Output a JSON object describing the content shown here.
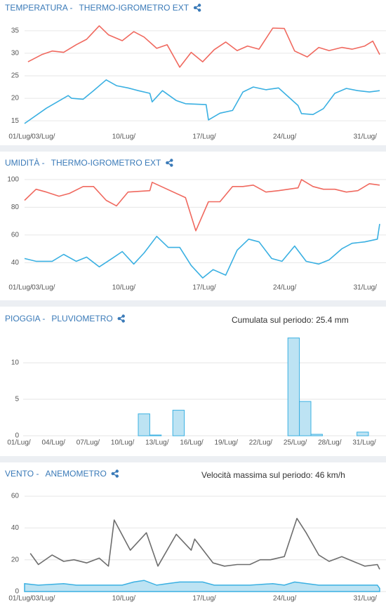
{
  "chart_data": [
    {
      "type": "line",
      "title": "TEMPERATURA -",
      "sensor": "THERMO-IGROMETRO EXT",
      "xlim": [
        1,
        31.9
      ],
      "xticks": [
        {
          "value": 1,
          "label": "01/Lug/"
        },
        {
          "value": 3,
          "label": "03/Lug/"
        },
        {
          "value": 10,
          "label": "10/Lug/"
        },
        {
          "value": 17,
          "label": "17/Lug/"
        },
        {
          "value": 24,
          "label": "24/Lug/"
        },
        {
          "value": 31,
          "label": "31/Lug/"
        }
      ],
      "ylim": [
        13,
        37
      ],
      "yticks": [
        15,
        20,
        25,
        30,
        35
      ],
      "grid": true,
      "series": [
        {
          "color": "#f0695f",
          "x": [
            1.3,
            2.5,
            3.4,
            4.4,
            5.5,
            6.4,
            7.5,
            8.3,
            9.5,
            10.5,
            11.4,
            12.5,
            13.4,
            14.5,
            15.5,
            16.5,
            17.5,
            18.5,
            19.5,
            20.4,
            21.4,
            22.6,
            23.6,
            24.5,
            25.6,
            26.6,
            27.5,
            28.6,
            29.5,
            30.6,
            31.3,
            31.9
          ],
          "values": [
            28.1,
            29.7,
            30.5,
            30.2,
            31.9,
            33.1,
            36.1,
            34.1,
            32.8,
            34.8,
            33.6,
            31.1,
            31.9,
            26.9,
            30.2,
            28.1,
            30.8,
            32.5,
            30.6,
            31.6,
            30.9,
            35.6,
            35.5,
            30.5,
            29.2,
            31.3,
            30.6,
            31.3,
            30.9,
            31.6,
            32.7,
            29.7
          ]
        },
        {
          "color": "#3ab0e2",
          "x": [
            1,
            2.9,
            4.8,
            5.1,
            6.1,
            7,
            8.1,
            9,
            10,
            10.9,
            11.9,
            12.1,
            13,
            14.2,
            15,
            16.8,
            17,
            18,
            19.1,
            20,
            20.9,
            22,
            23.1,
            24.8,
            25.1,
            26.1,
            27,
            28,
            29,
            30,
            31,
            31.9
          ],
          "values": [
            14.4,
            17.8,
            20.6,
            20,
            19.8,
            21.7,
            24.1,
            22.8,
            22.3,
            21.7,
            21.1,
            19.2,
            21.7,
            19.5,
            18.8,
            18.6,
            15.2,
            16.7,
            17.3,
            21.4,
            22.5,
            21.9,
            22.3,
            18.4,
            16.6,
            16.4,
            17.7,
            21.1,
            22.2,
            21.7,
            21.4,
            21.7
          ]
        }
      ]
    },
    {
      "type": "line",
      "title": "UMIDITÀ -",
      "sensor": "THERMO-IGROMETRO EXT",
      "xlim": [
        1,
        31.9
      ],
      "xticks": [
        {
          "value": 1,
          "label": "01/Lug/"
        },
        {
          "value": 3,
          "label": "03/Lug/"
        },
        {
          "value": 10,
          "label": "10/Lug/"
        },
        {
          "value": 17,
          "label": "17/Lug/"
        },
        {
          "value": 24,
          "label": "24/Lug/"
        },
        {
          "value": 31,
          "label": "31/Lug/"
        }
      ],
      "ylim": [
        27,
        104
      ],
      "yticks": [
        40,
        60,
        80,
        100
      ],
      "grid": true,
      "series": [
        {
          "color": "#f0695f",
          "x": [
            1,
            2,
            2.9,
            4,
            4.9,
            6.1,
            7,
            8.1,
            9,
            10,
            11.9,
            12.1,
            15,
            15.9,
            17,
            18,
            19.1,
            20,
            20.9,
            22,
            23.1,
            24.8,
            25.1,
            26.1,
            27,
            28,
            29,
            30,
            31,
            31.9
          ],
          "values": [
            85,
            93,
            91,
            88,
            90,
            95,
            95,
            85,
            81,
            91,
            92,
            98,
            87,
            63,
            84,
            84,
            95,
            95,
            96,
            91,
            92,
            94,
            100,
            95,
            93,
            93,
            91,
            92,
            97,
            96
          ]
        },
        {
          "color": "#3ab0e2",
          "x": [
            1,
            2,
            2.9,
            3.4,
            4.4,
            5.5,
            6.4,
            7.5,
            8.6,
            9.5,
            10.5,
            11.4,
            12.5,
            13.5,
            14.5,
            15.5,
            16.5,
            17.4,
            18.5,
            19.5,
            20.5,
            21.4,
            22.5,
            23.4,
            24.5,
            25.5,
            26.6,
            27.5,
            28.6,
            29.5,
            30.6,
            31.7,
            31.9
          ],
          "values": [
            43,
            41,
            41,
            41,
            46,
            41,
            44,
            37,
            43,
            48,
            39,
            47,
            59,
            51,
            51,
            38,
            29,
            35,
            31,
            49,
            57,
            55,
            43,
            41,
            52,
            41,
            39,
            42,
            50,
            54,
            55,
            57,
            68
          ]
        }
      ]
    },
    {
      "type": "bar",
      "title": "PIOGGIA -",
      "sensor": "PLUVIOMETRO",
      "annotation": "Cumulata sul periodo: 25.4 mm",
      "xlim": [
        1,
        32
      ],
      "xticks": [
        {
          "value": 1,
          "label": "01/Lug/"
        },
        {
          "value": 4,
          "label": "04/Lug/"
        },
        {
          "value": 7,
          "label": "07/Lug/"
        },
        {
          "value": 10,
          "label": "10/Lug/"
        },
        {
          "value": 13,
          "label": "13/Lug/"
        },
        {
          "value": 16,
          "label": "16/Lug/"
        },
        {
          "value": 19,
          "label": "19/Lug/"
        },
        {
          "value": 22,
          "label": "22/Lug/"
        },
        {
          "value": 25,
          "label": "25/Lug/"
        },
        {
          "value": 28,
          "label": "28/Lug/"
        },
        {
          "value": 31,
          "label": "31/Lug/"
        }
      ],
      "ylim": [
        0,
        15
      ],
      "yticks": [
        0,
        5,
        10
      ],
      "grid": true,
      "color": "#bde3f3",
      "edge_color": "#3ab0e2",
      "x": [
        1,
        2,
        3,
        4,
        5,
        6,
        7,
        8,
        9,
        10,
        11,
        12,
        13,
        14,
        15,
        16,
        17,
        18,
        19,
        20,
        21,
        22,
        23,
        24,
        25,
        26,
        27,
        28,
        29,
        30,
        31
      ],
      "values": [
        0,
        0,
        0,
        0,
        0,
        0,
        0,
        0,
        0,
        0,
        3,
        0.1,
        0,
        3.5,
        0,
        0,
        0,
        0,
        0,
        0,
        0,
        0,
        0,
        13.4,
        4.7,
        0.2,
        0,
        0,
        0,
        0.5,
        0
      ]
    },
    {
      "type": "line",
      "title": "VENTO -",
      "sensor": "ANEMOMETRO",
      "annotation": "Velocità massima sul periodo: 46 km/h",
      "xlim": [
        1,
        31.9
      ],
      "xticks": [
        {
          "value": 1,
          "label": "01/Lug/"
        },
        {
          "value": 3,
          "label": "03/Lug/"
        },
        {
          "value": 10,
          "label": "10/Lug/"
        },
        {
          "value": 17,
          "label": "17/Lug/"
        },
        {
          "value": 24,
          "label": "24/Lug/"
        },
        {
          "value": 31,
          "label": "31/Lug/"
        }
      ],
      "ylim": [
        0,
        64
      ],
      "yticks": [
        0,
        20,
        40,
        60
      ],
      "grid": true,
      "series": [
        {
          "color": "#6d6d6d",
          "x": [
            1.5,
            2.2,
            3.4,
            4.4,
            5.3,
            6.4,
            7.5,
            8.3,
            8.8,
            10.2,
            11.6,
            12.6,
            14.2,
            15.5,
            15.8,
            17.4,
            18.4,
            19.5,
            20.6,
            21.5,
            22.4,
            23.6,
            24.7,
            25.5,
            26.6,
            27.5,
            28.6,
            30.6,
            31.7,
            31.9
          ],
          "values": [
            24,
            17,
            23,
            19,
            20,
            18,
            21,
            16,
            45,
            26,
            37,
            16,
            36,
            26,
            33,
            18,
            16,
            17,
            17,
            20,
            20,
            22,
            46,
            37,
            23,
            19,
            22,
            16,
            17,
            14
          ]
        },
        {
          "color": "#3ab0e2",
          "fill": "#bde3f3",
          "x": [
            1,
            2.2,
            4.4,
            5.5,
            9.5,
            10.5,
            11.4,
            12.5,
            13.4,
            14.5,
            15.5,
            16.5,
            17.5,
            18.5,
            20.6,
            22.6,
            23.6,
            24.5,
            25.6,
            26.6,
            27.5,
            28.6,
            29.5,
            30.6,
            31.7,
            31.9
          ],
          "values": [
            5,
            4,
            5,
            4,
            4,
            6,
            7,
            4,
            5,
            6,
            6,
            6,
            4,
            4,
            4,
            5,
            4,
            6,
            5,
            4,
            4,
            4,
            4,
            4,
            4,
            2
          ]
        }
      ]
    }
  ]
}
